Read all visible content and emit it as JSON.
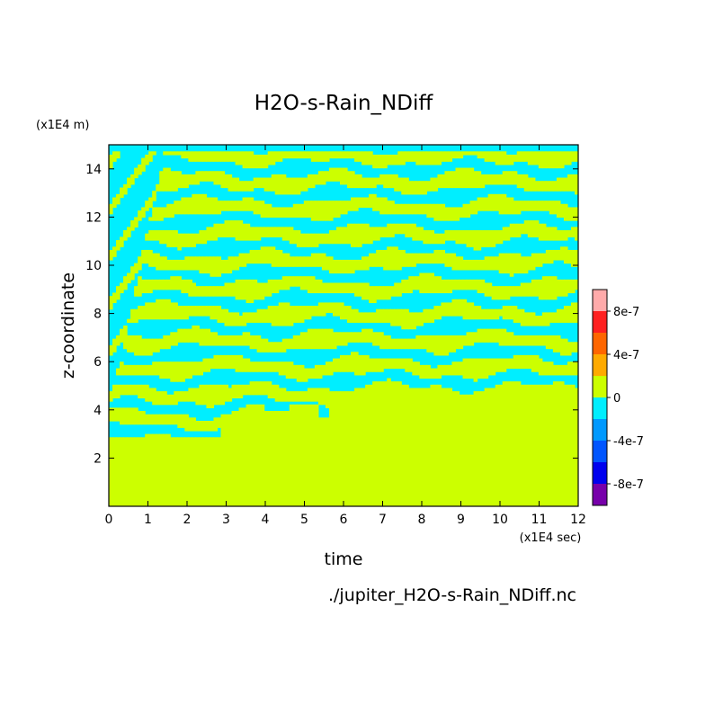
{
  "chart_data": {
    "type": "heatmap",
    "title": "H2O-s-Rain_NDiff",
    "xlabel": "time",
    "ylabel": "z-coordinate",
    "x_unit_label": "(x1E4 sec)",
    "y_unit_label": "(x1E4 m)",
    "source_label": "./jupiter_H2O-s-Rain_NDiff.nc",
    "xlim": [
      0,
      12
    ],
    "ylim": [
      0,
      15
    ],
    "x_ticks": [
      "0",
      "1",
      "2",
      "3",
      "4",
      "5",
      "6",
      "7",
      "8",
      "9",
      "10",
      "11",
      "12"
    ],
    "y_ticks": [
      "2",
      "4",
      "6",
      "8",
      "10",
      "12",
      "14"
    ],
    "colorbar": {
      "levels": [
        {
          "range": [
            8e-07,
            1e-06
          ],
          "color": "#ffaaaa"
        },
        {
          "range": [
            6e-07,
            8e-07
          ],
          "color": "#ff2020"
        },
        {
          "range": [
            4e-07,
            6e-07
          ],
          "color": "#ff6600"
        },
        {
          "range": [
            2e-07,
            4e-07
          ],
          "color": "#ffaa00"
        },
        {
          "range": [
            0,
            2e-07
          ],
          "color": "#ccff00"
        },
        {
          "range": [
            -2e-07,
            0
          ],
          "color": "#00eeff"
        },
        {
          "range": [
            -4e-07,
            -2e-07
          ],
          "color": "#0099ff"
        },
        {
          "range": [
            -6e-07,
            -4e-07
          ],
          "color": "#0055ff"
        },
        {
          "range": [
            -8e-07,
            -6e-07
          ],
          "color": "#0000ee"
        },
        {
          "range": [
            -1e-06,
            -8e-07
          ],
          "color": "#7700aa"
        }
      ],
      "tick_labels": [
        "8e-7",
        "4e-7",
        "0",
        "-4e-7",
        "-8e-7"
      ]
    },
    "field_description_regions": {
      "surface_layer_top": 2.8,
      "uniform_region_top_after_t6": 4.7,
      "dominant_values": [
        "0 to 2e-7",
        "-2e-7 to 0"
      ]
    }
  }
}
